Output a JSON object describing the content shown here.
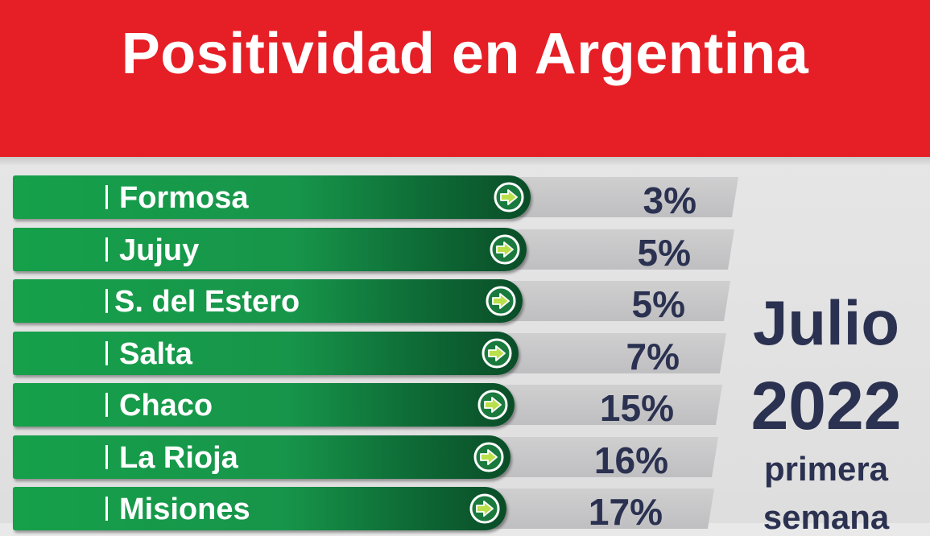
{
  "title": "Positividad en Argentina",
  "side": {
    "month": "Julio",
    "year": "2022",
    "line1": "primera",
    "line2": "semana"
  },
  "colors": {
    "header": "#e61e25",
    "bar_green": "#17954a",
    "value_text": "#2b3150"
  },
  "chart_data": {
    "type": "bar",
    "title": "Positividad en Argentina",
    "categories": [
      "Formosa",
      "Jujuy",
      "S. del Estero",
      "Salta",
      "Chaco",
      "La Rioja",
      "Misiones"
    ],
    "values": [
      3,
      5,
      5,
      7,
      15,
      16,
      17
    ],
    "value_labels": [
      "3%",
      "5%",
      "5%",
      "7%",
      "15%",
      "16%",
      "17%"
    ],
    "unit": "%",
    "icon": "arrow-right-circle-icon"
  }
}
